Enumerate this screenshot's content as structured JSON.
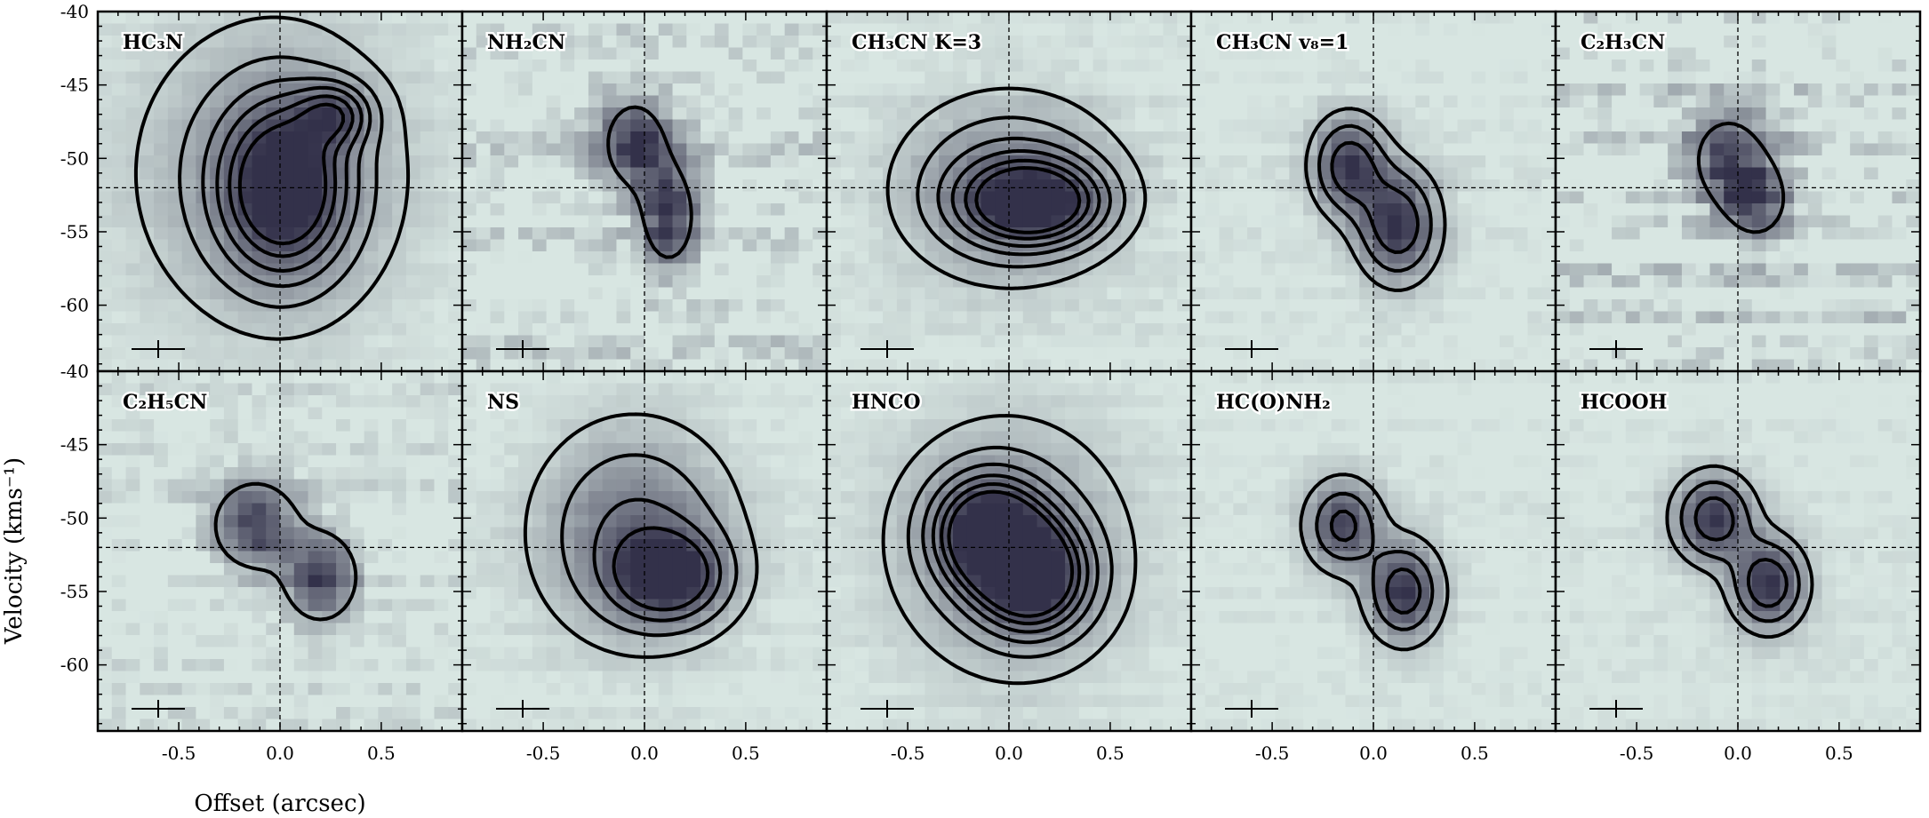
{
  "figure": {
    "ylabel": "Velocity (kms⁻¹)",
    "xlabel": "Offset (arcsec)",
    "colors": {
      "background": "#d8e6e2",
      "emission": "#33314a",
      "contour": "#000000"
    }
  },
  "chart_data": {
    "type": "heatmap",
    "layout": "2 rows x 5 columns, shared axes",
    "xlim": [
      -0.9,
      0.9
    ],
    "ylim": [
      -64.5,
      -40
    ],
    "y_reversed": true,
    "x_ticks": [
      -0.5,
      0.0,
      0.5
    ],
    "x_tick_labels": [
      "-0.5",
      "0.0",
      "0.5"
    ],
    "y_ticks": [
      -40,
      -45,
      -50,
      -55,
      -60
    ],
    "y_tick_labels": [
      "-40",
      "-45",
      "-50",
      "-55",
      "-60"
    ],
    "reference_lines": {
      "offset": 0.0,
      "velocity": -52
    },
    "panels": [
      {
        "label": "HC₃N",
        "components": [
          {
            "x": 0.02,
            "v": -52,
            "sx": 0.2,
            "sv": 3.8,
            "a": 1.0
          },
          {
            "x": 0.27,
            "v": -47,
            "sx": 0.12,
            "sv": 1.4,
            "a": 0.55
          },
          {
            "x": -0.05,
            "v": -51,
            "sx": 0.45,
            "sv": 7,
            "a": 0.35
          }
        ],
        "contour_levels": [
          0.12,
          0.25,
          0.4,
          0.55,
          0.72,
          0.88
        ],
        "noise": 0.08
      },
      {
        "label": "NH₂CN",
        "components": [
          {
            "x": -0.05,
            "v": -49,
            "sx": 0.13,
            "sv": 2.5,
            "a": 0.9
          },
          {
            "x": 0.12,
            "v": -54,
            "sx": 0.1,
            "sv": 2.5,
            "a": 1.0
          }
        ],
        "contour_levels": [
          0.55
        ],
        "noise": 0.45
      },
      {
        "label": "CH₃CN K=3",
        "components": [
          {
            "x": 0.12,
            "v": -53,
            "sx": 0.22,
            "sv": 1.8,
            "a": 1.0
          },
          {
            "x": 0.0,
            "v": -52,
            "sx": 0.35,
            "sv": 4,
            "a": 0.5
          }
        ],
        "contour_levels": [
          0.12,
          0.25,
          0.4,
          0.55,
          0.72,
          0.88
        ],
        "noise": 0.12
      },
      {
        "label": "CH₃CN v₈=1",
        "components": [
          {
            "x": -0.12,
            "v": -50.5,
            "sx": 0.12,
            "sv": 2.2,
            "a": 0.95
          },
          {
            "x": 0.12,
            "v": -54.5,
            "sx": 0.13,
            "sv": 2.5,
            "a": 1.0
          }
        ],
        "contour_levels": [
          0.2,
          0.45,
          0.75
        ],
        "noise": 0.12
      },
      {
        "label": "C₂H₃CN",
        "components": [
          {
            "x": -0.05,
            "v": -50,
            "sx": 0.15,
            "sv": 2.5,
            "a": 0.85
          },
          {
            "x": 0.1,
            "v": -53,
            "sx": 0.12,
            "sv": 2,
            "a": 0.8
          }
        ],
        "contour_levels": [
          0.55
        ],
        "noise": 0.5
      },
      {
        "label": "C₂H₅CN",
        "components": [
          {
            "x": -0.12,
            "v": -50.5,
            "sx": 0.14,
            "sv": 2,
            "a": 0.95
          },
          {
            "x": 0.2,
            "v": -54,
            "sx": 0.12,
            "sv": 2,
            "a": 1.0
          }
        ],
        "contour_levels": [
          0.35
        ],
        "noise": 0.3
      },
      {
        "label": "NS",
        "components": [
          {
            "x": 0.12,
            "v": -54,
            "sx": 0.18,
            "sv": 2,
            "a": 1.0
          },
          {
            "x": -0.05,
            "v": -51,
            "sx": 0.3,
            "sv": 4.5,
            "a": 0.6
          }
        ],
        "contour_levels": [
          0.12,
          0.3,
          0.55,
          0.8
        ],
        "noise": 0.1
      },
      {
        "label": "HNCO",
        "components": [
          {
            "x": -0.1,
            "v": -51,
            "sx": 0.18,
            "sv": 2.5,
            "a": 1.0
          },
          {
            "x": 0.12,
            "v": -54,
            "sx": 0.18,
            "sv": 2.5,
            "a": 1.0
          },
          {
            "x": 0.0,
            "v": -52,
            "sx": 0.4,
            "sv": 6,
            "a": 0.35
          }
        ],
        "contour_levels": [
          0.12,
          0.25,
          0.4,
          0.55,
          0.7,
          0.85
        ],
        "noise": 0.08
      },
      {
        "label": "HC(O)NH₂",
        "components": [
          {
            "x": -0.15,
            "v": -50.5,
            "sx": 0.12,
            "sv": 2,
            "a": 0.9
          },
          {
            "x": 0.15,
            "v": -55,
            "sx": 0.12,
            "sv": 2.2,
            "a": 1.0
          }
        ],
        "contour_levels": [
          0.2,
          0.5,
          0.8
        ],
        "noise": 0.1
      },
      {
        "label": "HCOOH",
        "components": [
          {
            "x": -0.12,
            "v": -50,
            "sx": 0.13,
            "sv": 2,
            "a": 0.95
          },
          {
            "x": 0.15,
            "v": -54.5,
            "sx": 0.12,
            "sv": 2,
            "a": 1.0
          }
        ],
        "contour_levels": [
          0.2,
          0.45,
          0.75
        ],
        "noise": 0.1
      }
    ]
  }
}
